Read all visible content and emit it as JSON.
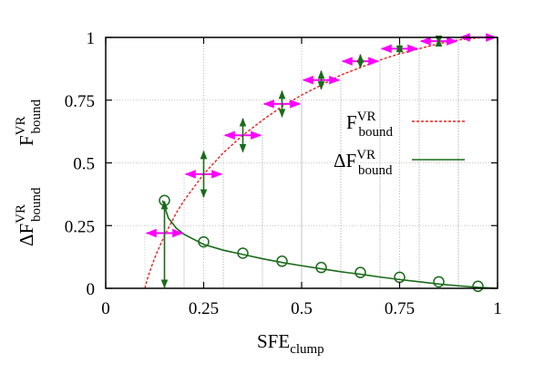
{
  "chart_data": {
    "type": "line",
    "xlabel": {
      "main": "SFE",
      "sub": "clump"
    },
    "ylabel_top": {
      "main": "F",
      "sup": "VR",
      "sub": "bound"
    },
    "ylabel_bottom": {
      "main": "ΔF",
      "sup": "VR",
      "sub": "bound"
    },
    "xlim": [
      0,
      1
    ],
    "ylim": [
      0,
      1
    ],
    "xticks": [
      0,
      0.25,
      0.5,
      0.75,
      1
    ],
    "yticks": [
      0,
      0.25,
      0.5,
      0.75,
      1
    ],
    "xtick_labels": [
      "0",
      "0.25",
      "0.5",
      "0.75",
      "1"
    ],
    "ytick_labels": [
      "0",
      "0.25",
      "0.5",
      "0.75",
      "1"
    ],
    "grid": true,
    "legend_position": "center-right",
    "series": [
      {
        "name": {
          "main": "F",
          "sup": "VR",
          "sub": "bound"
        },
        "style": "dashed-line",
        "color": "#e8201c",
        "x": [
          0.1,
          0.105,
          0.11,
          0.12,
          0.13,
          0.15,
          0.18,
          0.2,
          0.25,
          0.3,
          0.35,
          0.4,
          0.45,
          0.5,
          0.55,
          0.6,
          0.65,
          0.7,
          0.75,
          0.8,
          0.85,
          0.9,
          0.95,
          1.0
        ],
        "y": [
          0.0,
          0.03,
          0.055,
          0.1,
          0.14,
          0.21,
          0.3,
          0.35,
          0.455,
          0.54,
          0.61,
          0.67,
          0.725,
          0.77,
          0.81,
          0.85,
          0.88,
          0.91,
          0.935,
          0.955,
          0.975,
          0.99,
          0.998,
          1.0
        ]
      },
      {
        "name": {
          "main": "ΔF",
          "sup": "VR",
          "sub": "bound"
        },
        "style": "solid-line",
        "color": "#1a6b1a",
        "x": [
          0.145,
          0.16,
          0.18,
          0.2,
          0.25,
          0.3,
          0.35,
          0.4,
          0.45,
          0.5,
          0.55,
          0.6,
          0.65,
          0.7,
          0.75,
          0.8,
          0.85,
          0.9,
          0.95,
          1.0
        ],
        "y": [
          0.35,
          0.28,
          0.24,
          0.215,
          0.175,
          0.152,
          0.135,
          0.118,
          0.103,
          0.09,
          0.078,
          0.066,
          0.056,
          0.045,
          0.035,
          0.026,
          0.017,
          0.01,
          0.004,
          0.0
        ]
      }
    ],
    "markers": {
      "x": [
        0.15,
        0.25,
        0.35,
        0.45,
        0.55,
        0.65,
        0.75,
        0.85,
        0.95
      ],
      "y": [
        0.35,
        0.185,
        0.14,
        0.108,
        0.083,
        0.063,
        0.044,
        0.026,
        0.008
      ],
      "color": "#1a6b1a"
    },
    "bins": {
      "x": [
        0.15,
        0.25,
        0.35,
        0.45,
        0.55,
        0.65,
        0.75,
        0.85,
        0.95
      ],
      "y": [
        0.22,
        0.455,
        0.61,
        0.735,
        0.83,
        0.905,
        0.955,
        0.985,
        1.0
      ],
      "dy": [
        0.175,
        0.095,
        0.07,
        0.055,
        0.04,
        0.03,
        0.022,
        0.013,
        0.004
      ],
      "first_bin_full_vertical": [
        0.0,
        0.35
      ],
      "half_width": 0.05,
      "horizontal_color": "#ff00ff",
      "vertical_color": "#1a6b1a"
    }
  }
}
